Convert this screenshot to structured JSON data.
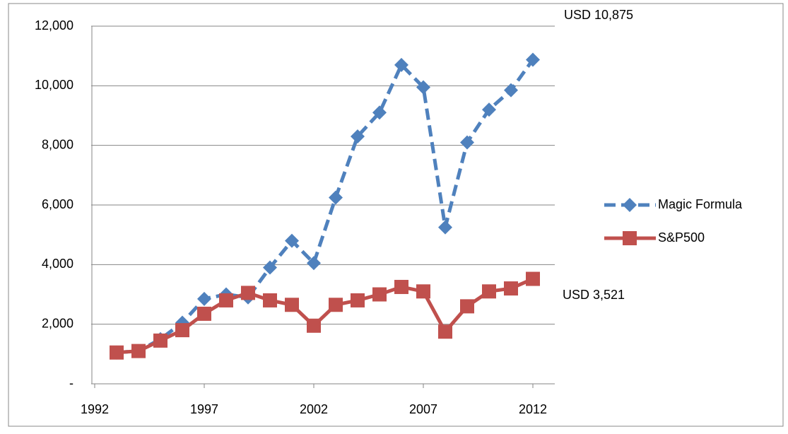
{
  "chart_data": {
    "type": "line",
    "x": [
      1993,
      1994,
      1995,
      1996,
      1997,
      1998,
      1999,
      2000,
      2001,
      2002,
      2003,
      2004,
      2005,
      2006,
      2007,
      2008,
      2009,
      2010,
      2011,
      2012
    ],
    "series": [
      {
        "name": "Magic Formula",
        "color": "#4f81bd",
        "dashed": true,
        "marker": "diamond",
        "values": [
          1050,
          1100,
          1500,
          2050,
          2850,
          3000,
          2900,
          3900,
          4800,
          4050,
          6250,
          8300,
          9100,
          10700,
          9950,
          5250,
          8100,
          9200,
          9850,
          10875
        ]
      },
      {
        "name": "S&P500",
        "color": "#c0504d",
        "dashed": false,
        "marker": "square",
        "values": [
          1050,
          1100,
          1450,
          1800,
          2350,
          2800,
          3050,
          2800,
          2650,
          1950,
          2650,
          2800,
          3000,
          3250,
          3100,
          1750,
          2600,
          3100,
          3200,
          3521
        ]
      }
    ],
    "xlim": [
      1992,
      2013
    ],
    "xticks": [
      1992,
      1997,
      2002,
      2007,
      2012
    ],
    "ylim": [
      0,
      12000
    ],
    "yticks": [
      {
        "value": 0,
        "label": "-"
      },
      {
        "value": 2000,
        "label": "2,000"
      },
      {
        "value": 4000,
        "label": "4,000"
      },
      {
        "value": 6000,
        "label": "6,000"
      },
      {
        "value": 8000,
        "label": "8,000"
      },
      {
        "value": 10000,
        "label": "10,000"
      },
      {
        "value": 12000,
        "label": "12,000"
      }
    ],
    "grid": true,
    "legend": "right",
    "annotations": [
      "USD 10,875",
      "USD 3,521"
    ]
  }
}
